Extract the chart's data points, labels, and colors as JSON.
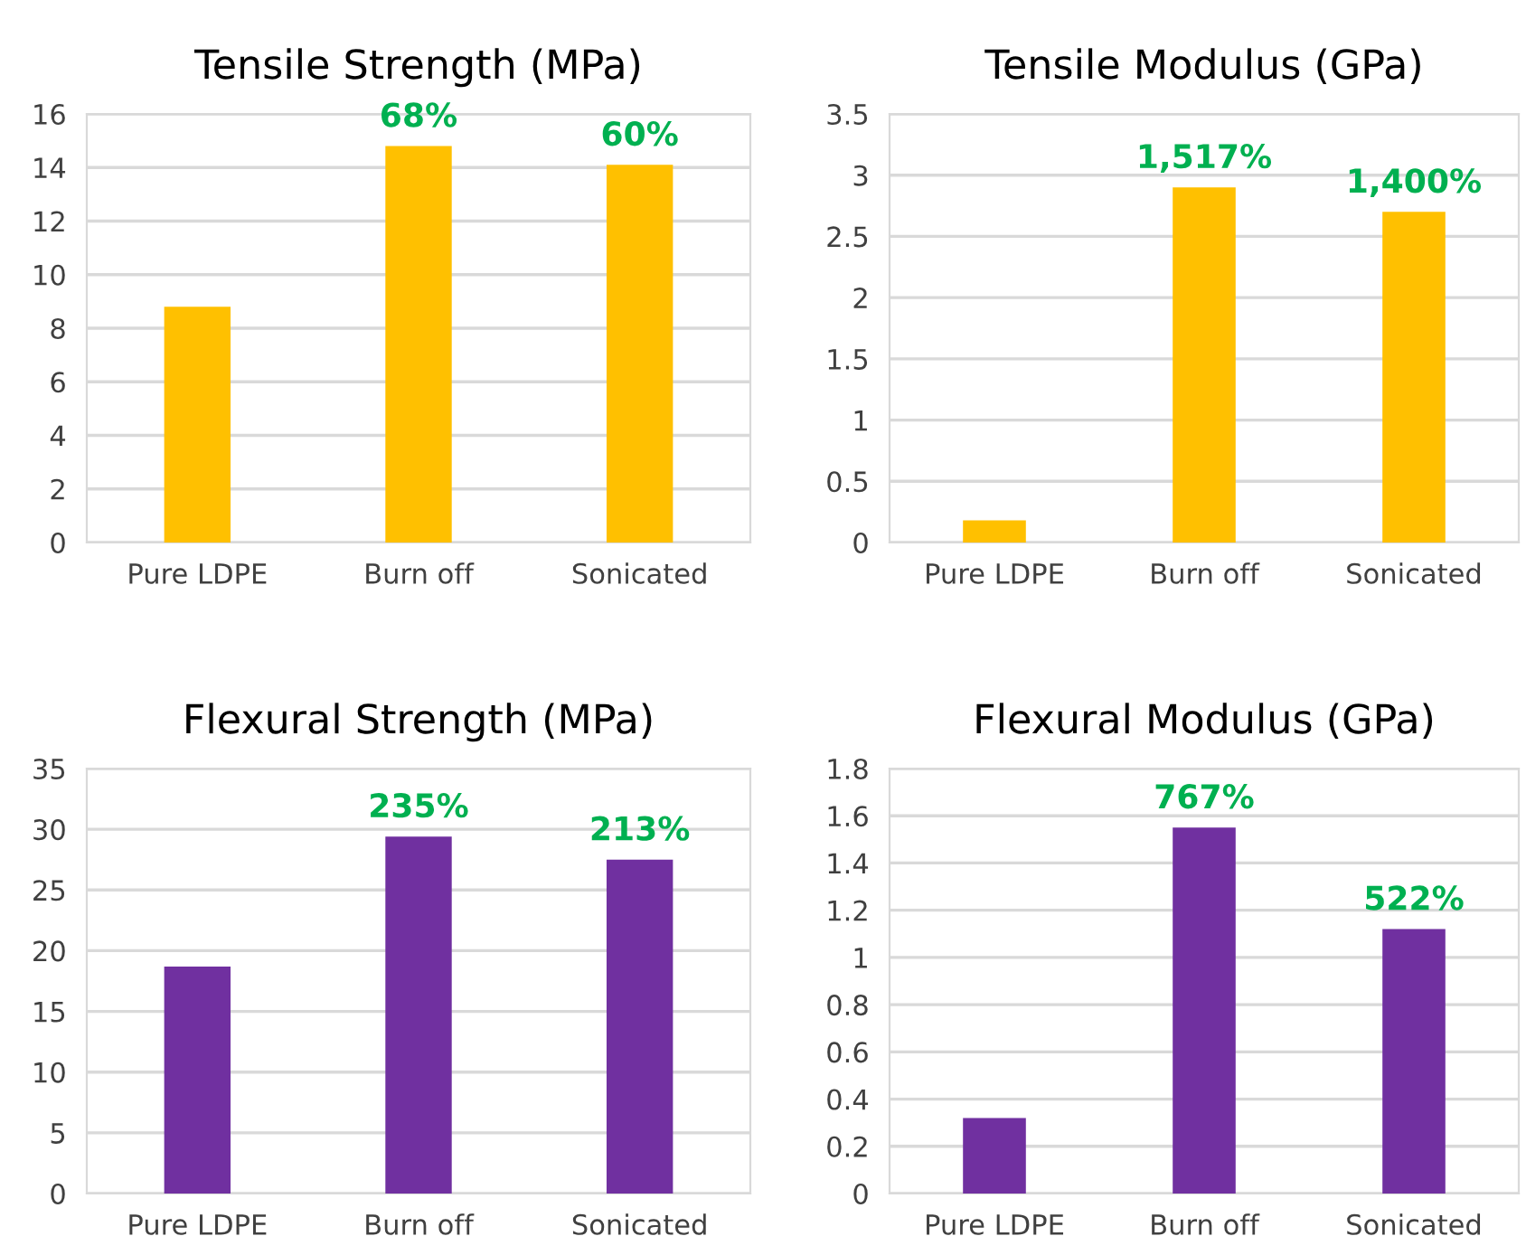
{
  "chart_data": [
    {
      "type": "bar",
      "title": "Tensile Strength (MPa)",
      "categories": [
        "Pure LDPE",
        "Burn off",
        "Sonicated"
      ],
      "values": [
        8.8,
        14.8,
        14.1
      ],
      "color": "#ffc000",
      "annotations": [
        {
          "text": "68%",
          "x": "Burn off",
          "y": 14.8
        },
        {
          "text": "60%",
          "x": "Sonicated",
          "y": 14.1
        }
      ],
      "ylim": [
        0,
        16
      ],
      "yticks": [
        0,
        2,
        4,
        6,
        8,
        10,
        12,
        14,
        16
      ],
      "grid": "y"
    },
    {
      "type": "bar",
      "title": "Tensile Modulus (GPa)",
      "categories": [
        "Pure LDPE",
        "Burn off",
        "Sonicated"
      ],
      "values": [
        0.18,
        2.9,
        2.7
      ],
      "color": "#ffc000",
      "annotations": [
        {
          "text": "1,517%",
          "x": "Burn off",
          "y": 2.9
        },
        {
          "text": "1,400%",
          "x": "Sonicated",
          "y": 2.7
        }
      ],
      "ylim": [
        0,
        3.5
      ],
      "yticks": [
        0,
        0.5,
        1,
        1.5,
        2,
        2.5,
        3,
        3.5
      ],
      "grid": "y"
    },
    {
      "type": "bar",
      "title": "Flexural Strength (MPa)",
      "categories": [
        "Pure LDPE",
        "Burn off",
        "Sonicated"
      ],
      "values": [
        18.7,
        29.4,
        27.5
      ],
      "color": "#7030a0",
      "annotations": [
        {
          "text": "235%",
          "x": "Burn off",
          "y": 29.4
        },
        {
          "text": "213%",
          "x": "Sonicated",
          "y": 27.5
        }
      ],
      "ylim": [
        0,
        35
      ],
      "yticks": [
        0,
        5,
        10,
        15,
        20,
        25,
        30,
        35
      ],
      "grid": "y"
    },
    {
      "type": "bar",
      "title": "Flexural Modulus (GPa)",
      "categories": [
        "Pure LDPE",
        "Burn off",
        "Sonicated"
      ],
      "values": [
        0.32,
        1.55,
        1.12
      ],
      "color": "#7030a0",
      "annotations": [
        {
          "text": "767%",
          "x": "Burn off",
          "y": 1.55
        },
        {
          "text": "522%",
          "x": "Sonicated",
          "y": 1.12
        }
      ],
      "ylim": [
        0,
        1.8
      ],
      "yticks": [
        0,
        0.2,
        0.4,
        0.6,
        0.8,
        1,
        1.2,
        1.4,
        1.6,
        1.8
      ],
      "grid": "y"
    }
  ]
}
